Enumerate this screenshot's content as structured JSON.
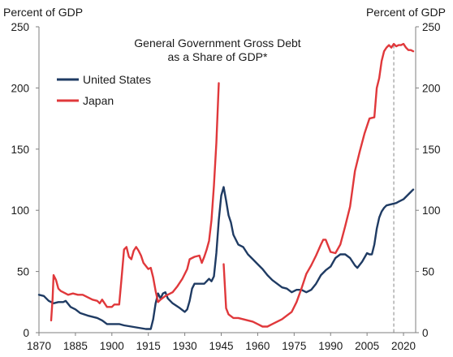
{
  "chart_data": {
    "type": "line",
    "title_lines": [
      "General Government Gross Debt",
      "as a Share of GDP*"
    ],
    "ylabel_left": "Percent of GDP",
    "ylabel_right": "Percent of GDP",
    "ylim": [
      0,
      250
    ],
    "yticks": [
      0,
      50,
      100,
      150,
      200,
      250
    ],
    "xlim": [
      1870,
      2025
    ],
    "xticks": [
      1870,
      1885,
      1900,
      1915,
      1930,
      1945,
      1960,
      1975,
      1990,
      2005,
      2020
    ],
    "legend_position": "top-left",
    "vline_x": 2016,
    "vline_style": "dashed",
    "series": [
      {
        "name": "United States",
        "color": "#1f3b63",
        "points": [
          [
            1870,
            31
          ],
          [
            1872,
            30
          ],
          [
            1874,
            26
          ],
          [
            1876,
            24
          ],
          [
            1878,
            25
          ],
          [
            1880,
            25
          ],
          [
            1881,
            26
          ],
          [
            1883,
            21
          ],
          [
            1885,
            19
          ],
          [
            1887,
            16
          ],
          [
            1890,
            14
          ],
          [
            1892,
            13
          ],
          [
            1894,
            12
          ],
          [
            1896,
            10
          ],
          [
            1898,
            7
          ],
          [
            1900,
            7
          ],
          [
            1903,
            7
          ],
          [
            1905,
            6
          ],
          [
            1908,
            5
          ],
          [
            1911,
            4
          ],
          [
            1914,
            3
          ],
          [
            1916,
            3
          ],
          [
            1917,
            11
          ],
          [
            1918,
            24
          ],
          [
            1919,
            32
          ],
          [
            1920,
            28
          ],
          [
            1921,
            32
          ],
          [
            1922,
            33
          ],
          [
            1923,
            28
          ],
          [
            1925,
            24
          ],
          [
            1928,
            20
          ],
          [
            1930,
            17
          ],
          [
            1931,
            19
          ],
          [
            1932,
            26
          ],
          [
            1933,
            36
          ],
          [
            1934,
            40
          ],
          [
            1936,
            40
          ],
          [
            1938,
            40
          ],
          [
            1940,
            44
          ],
          [
            1941,
            42
          ],
          [
            1942,
            46
          ],
          [
            1943,
            65
          ],
          [
            1944,
            92
          ],
          [
            1945,
            112
          ],
          [
            1946,
            119
          ],
          [
            1947,
            108
          ],
          [
            1948,
            96
          ],
          [
            1949,
            90
          ],
          [
            1950,
            80
          ],
          [
            1952,
            72
          ],
          [
            1954,
            70
          ],
          [
            1956,
            64
          ],
          [
            1958,
            60
          ],
          [
            1960,
            56
          ],
          [
            1962,
            52
          ],
          [
            1964,
            47
          ],
          [
            1966,
            43
          ],
          [
            1968,
            40
          ],
          [
            1970,
            37
          ],
          [
            1972,
            36
          ],
          [
            1974,
            33
          ],
          [
            1976,
            35
          ],
          [
            1978,
            35
          ],
          [
            1980,
            33
          ],
          [
            1982,
            35
          ],
          [
            1984,
            40
          ],
          [
            1986,
            47
          ],
          [
            1988,
            51
          ],
          [
            1990,
            54
          ],
          [
            1992,
            61
          ],
          [
            1994,
            64
          ],
          [
            1996,
            64
          ],
          [
            1998,
            61
          ],
          [
            2000,
            55
          ],
          [
            2001,
            53
          ],
          [
            2003,
            58
          ],
          [
            2005,
            65
          ],
          [
            2006,
            64
          ],
          [
            2007,
            64
          ],
          [
            2008,
            72
          ],
          [
            2009,
            85
          ],
          [
            2010,
            94
          ],
          [
            2011,
            99
          ],
          [
            2012,
            102
          ],
          [
            2013,
            104
          ],
          [
            2015,
            105
          ],
          [
            2017,
            106
          ],
          [
            2018,
            107
          ],
          [
            2019,
            108
          ],
          [
            2020,
            109
          ],
          [
            2021,
            111
          ],
          [
            2023,
            115
          ],
          [
            2024,
            117
          ]
        ]
      },
      {
        "name": "Japan",
        "color": "#e0383b",
        "segments": [
          [
            [
              1875,
              10
            ],
            [
              1875.6,
              28
            ],
            [
              1876,
              47
            ],
            [
              1877,
              43
            ],
            [
              1878,
              36
            ],
            [
              1879,
              34
            ],
            [
              1880,
              33
            ],
            [
              1882,
              31
            ],
            [
              1884,
              32
            ],
            [
              1886,
              31
            ],
            [
              1888,
              31
            ],
            [
              1890,
              29
            ],
            [
              1892,
              27
            ],
            [
              1894,
              26
            ],
            [
              1895,
              24
            ],
            [
              1896,
              27
            ],
            [
              1897,
              24
            ],
            [
              1898,
              21
            ],
            [
              1900,
              21
            ],
            [
              1901,
              23
            ],
            [
              1903,
              23
            ],
            [
              1904,
              45
            ],
            [
              1905,
              68
            ],
            [
              1906,
              70
            ],
            [
              1907,
              62
            ],
            [
              1908,
              60
            ],
            [
              1909,
              67
            ],
            [
              1910,
              70
            ],
            [
              1911,
              67
            ],
            [
              1912,
              63
            ],
            [
              1913,
              57
            ],
            [
              1915,
              52
            ],
            [
              1916,
              53
            ],
            [
              1917,
              45
            ],
            [
              1918,
              34
            ],
            [
              1919,
              25
            ],
            [
              1920,
              27
            ],
            [
              1922,
              30
            ],
            [
              1925,
              33
            ],
            [
              1927,
              38
            ],
            [
              1929,
              44
            ],
            [
              1931,
              52
            ],
            [
              1932,
              60
            ],
            [
              1934,
              62
            ],
            [
              1936,
              63
            ],
            [
              1937,
              57
            ],
            [
              1938,
              62
            ],
            [
              1939,
              68
            ],
            [
              1940,
              75
            ],
            [
              1941,
              92
            ],
            [
              1942,
              120
            ],
            [
              1943,
              155
            ],
            [
              1944,
              204
            ]
          ],
          [
            [
              1946,
              56
            ],
            [
              1947,
              20
            ],
            [
              1948,
              15
            ],
            [
              1950,
              12
            ],
            [
              1952,
              12
            ],
            [
              1954,
              11
            ],
            [
              1956,
              10
            ],
            [
              1958,
              9
            ],
            [
              1960,
              7
            ],
            [
              1962,
              5
            ],
            [
              1964,
              5
            ],
            [
              1966,
              7
            ],
            [
              1968,
              9
            ],
            [
              1970,
              11
            ],
            [
              1972,
              14
            ],
            [
              1974,
              17
            ],
            [
              1976,
              25
            ],
            [
              1978,
              36
            ],
            [
              1980,
              48
            ],
            [
              1982,
              55
            ],
            [
              1984,
              63
            ],
            [
              1986,
              72
            ],
            [
              1987,
              76
            ],
            [
              1988,
              76
            ],
            [
              1990,
              66
            ],
            [
              1992,
              65
            ],
            [
              1994,
              72
            ],
            [
              1996,
              87
            ],
            [
              1998,
              103
            ],
            [
              2000,
              132
            ],
            [
              2002,
              148
            ],
            [
              2004,
              163
            ],
            [
              2006,
              175
            ],
            [
              2008,
              176
            ],
            [
              2009,
              200
            ],
            [
              2010,
              208
            ],
            [
              2011,
              222
            ],
            [
              2012,
              230
            ],
            [
              2013,
              233
            ],
            [
              2014,
              235
            ],
            [
              2015,
              233
            ],
            [
              2016,
              236
            ],
            [
              2017,
              234
            ],
            [
              2018,
              235
            ],
            [
              2019,
              235
            ],
            [
              2020,
              236
            ],
            [
              2021,
              233
            ],
            [
              2022,
              231
            ],
            [
              2023,
              231
            ],
            [
              2024,
              230
            ]
          ]
        ]
      }
    ]
  }
}
